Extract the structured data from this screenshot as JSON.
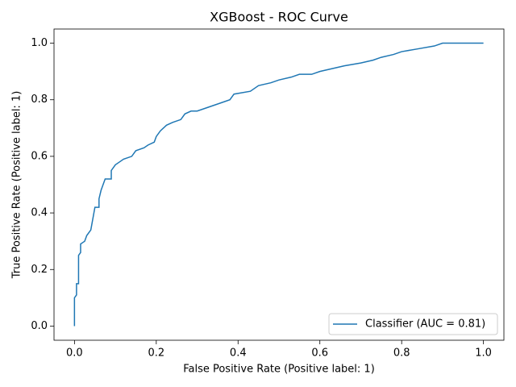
{
  "chart_data": {
    "type": "line",
    "title": "XGBoost - ROC Curve",
    "xlabel": "False Positive Rate (Positive label: 1)",
    "ylabel": "True Positive Rate (Positive label: 1)",
    "x": [
      0,
      0,
      0.005,
      0.005,
      0.01,
      0.01,
      0.015,
      0.015,
      0.025,
      0.03,
      0.04,
      0.045,
      0.05,
      0.06,
      0.06,
      0.065,
      0.07,
      0.075,
      0.09,
      0.09,
      0.1,
      0.11,
      0.12,
      0.14,
      0.15,
      0.17,
      0.18,
      0.195,
      0.2,
      0.21,
      0.225,
      0.24,
      0.26,
      0.27,
      0.285,
      0.3,
      0.32,
      0.34,
      0.36,
      0.38,
      0.39,
      0.43,
      0.45,
      0.48,
      0.5,
      0.53,
      0.55,
      0.58,
      0.6,
      0.63,
      0.66,
      0.7,
      0.73,
      0.75,
      0.78,
      0.8,
      0.84,
      0.88,
      0.9,
      1.0
    ],
    "series": [
      {
        "name": "Classifier (AUC = 0.81)",
        "color": "#1f77b4",
        "values": [
          0,
          0.1,
          0.11,
          0.15,
          0.15,
          0.25,
          0.26,
          0.29,
          0.3,
          0.32,
          0.34,
          0.38,
          0.42,
          0.42,
          0.45,
          0.48,
          0.5,
          0.52,
          0.52,
          0.55,
          0.57,
          0.58,
          0.59,
          0.6,
          0.62,
          0.63,
          0.64,
          0.65,
          0.67,
          0.69,
          0.71,
          0.72,
          0.73,
          0.75,
          0.76,
          0.76,
          0.77,
          0.78,
          0.79,
          0.8,
          0.82,
          0.83,
          0.85,
          0.86,
          0.87,
          0.88,
          0.89,
          0.89,
          0.9,
          0.91,
          0.92,
          0.93,
          0.94,
          0.95,
          0.96,
          0.97,
          0.98,
          0.99,
          1.0,
          1.0
        ]
      }
    ],
    "xlim": [
      -0.05,
      1.05
    ],
    "ylim": [
      -0.05,
      1.05
    ],
    "xticks": [
      {
        "value": 0,
        "label": "0.0"
      },
      {
        "value": 0.2,
        "label": "0.2"
      },
      {
        "value": 0.4,
        "label": "0.4"
      },
      {
        "value": 0.6,
        "label": "0.6"
      },
      {
        "value": 0.8,
        "label": "0.8"
      },
      {
        "value": 1,
        "label": "1.0"
      }
    ],
    "yticks": [
      {
        "value": 0,
        "label": "0.0"
      },
      {
        "value": 0.2,
        "label": "0.2"
      },
      {
        "value": 0.4,
        "label": "0.4"
      },
      {
        "value": 0.6,
        "label": "0.6"
      },
      {
        "value": 0.8,
        "label": "0.8"
      },
      {
        "value": 1,
        "label": "1.0"
      }
    ],
    "grid": false,
    "legend": "lower right"
  }
}
